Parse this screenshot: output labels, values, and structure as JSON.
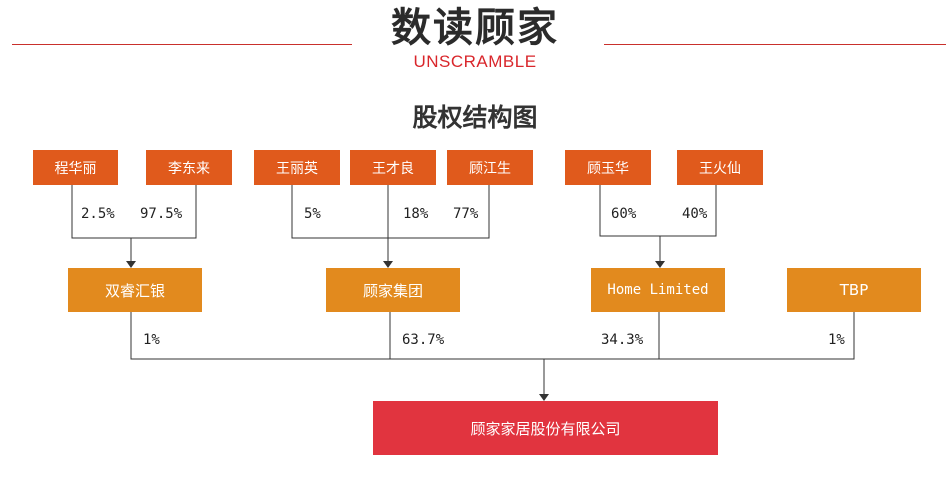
{
  "header": {
    "brand": "数读顾家",
    "brand_sub": "UNSCRAMBLE",
    "title": "股权结构图"
  },
  "colors": {
    "shareholder_box": "#e05a1c",
    "company_box": "#e28a1e",
    "target_box": "#e1343f",
    "accent_line": "#c9302c"
  },
  "shareholders": {
    "cheng_huali": "程华丽",
    "li_donglai": "李东来",
    "wang_liying": "王丽英",
    "wang_cailiang": "王才良",
    "gu_jiangsheng": "顾江生",
    "gu_yuhua": "顾玉华",
    "wang_huoxian": "王火仙"
  },
  "companies": {
    "shuangrui": "双睿汇银",
    "gujia_group": "顾家集团",
    "home_limited": "Home Limited",
    "tbp": "TBP"
  },
  "target": "顾家家居股份有限公司",
  "stakes": {
    "cheng_huali": "2.5%",
    "li_donglai": "97.5%",
    "wang_liying": "5%",
    "wang_cailiang": "18%",
    "gu_jiangsheng": "77%",
    "gu_yuhua": "60%",
    "wang_huoxian": "40%",
    "shuangrui": "1%",
    "gujia_group": "63.7%",
    "home_limited": "34.3%",
    "tbp": "1%"
  }
}
